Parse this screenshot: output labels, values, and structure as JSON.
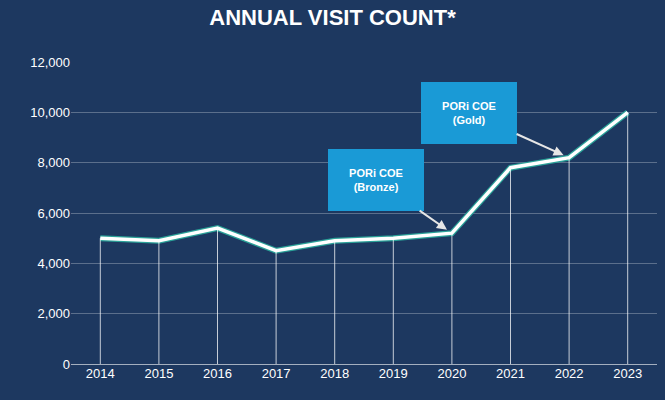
{
  "chart_data": {
    "type": "line",
    "title": "ANNUAL VISIT COUNT*",
    "categories": [
      "2014",
      "2015",
      "2016",
      "2017",
      "2018",
      "2019",
      "2020",
      "2021",
      "2022",
      "2023"
    ],
    "values": [
      5000,
      4900,
      5400,
      4500,
      4900,
      5000,
      5200,
      7800,
      8200,
      10000
    ],
    "color": "#ffffff",
    "ylim": [
      0,
      12000
    ],
    "yticks": [
      0,
      {
        "value": 2000,
        "label": "2,000"
      },
      {
        "value": 4000,
        "label": "4,000"
      },
      {
        "value": 6000,
        "label": "6,000"
      },
      {
        "value": 8000,
        "label": "8,000"
      },
      {
        "value": 10000,
        "label": "10,000"
      },
      {
        "value": 12000,
        "label": "12,000"
      }
    ],
    "grid": true,
    "annotations": [
      {
        "text": [
          "PORi COE",
          "(Bronze)"
        ],
        "category": "2020"
      },
      {
        "text": [
          "PORi COE",
          "(Gold)"
        ],
        "category": "2022"
      }
    ]
  }
}
